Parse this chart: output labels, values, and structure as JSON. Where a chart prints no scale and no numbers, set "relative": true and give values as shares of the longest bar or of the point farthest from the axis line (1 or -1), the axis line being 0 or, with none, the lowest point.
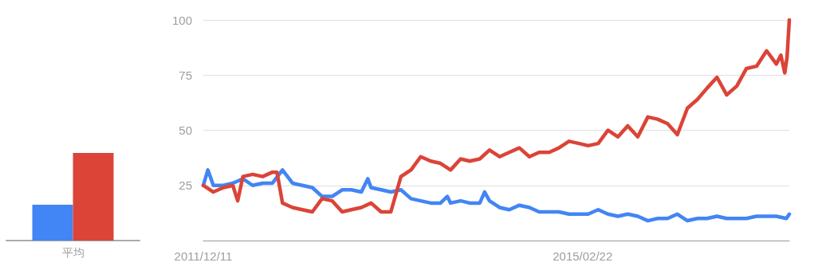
{
  "chart_data": [
    {
      "type": "bar",
      "relative": true,
      "categories": [
        "平均"
      ],
      "grid": false,
      "series": [
        {
          "color": "#4285f4",
          "values": [
            0.41
          ]
        },
        {
          "color": "#db4437",
          "values": [
            1
          ]
        }
      ]
    },
    {
      "type": "line",
      "grid": "y",
      "marker": "none",
      "line_style": "solid",
      "xlim": [
        "2011-12-11",
        "2016-11-20"
      ],
      "xticks": [
        {
          "value": "2011-12-11",
          "label": "2011/12/11"
        },
        {
          "value": "2015-02-22",
          "label": "2015/02/22"
        }
      ],
      "ylim": [
        0,
        100
      ],
      "yticks": [
        25,
        50,
        75,
        100
      ],
      "series": [
        {
          "color": "#4285f4",
          "x": [
            "2011-12-11",
            "2011-12-25",
            "2012-01-11",
            "2012-02-11",
            "2012-03-11",
            "2012-04-11",
            "2012-05-11",
            "2012-06-11",
            "2012-07-11",
            "2012-08-11",
            "2012-09-11",
            "2012-10-11",
            "2012-11-11",
            "2012-12-11",
            "2013-01-11",
            "2013-02-11",
            "2013-03-11",
            "2013-04-11",
            "2013-05-01",
            "2013-05-11",
            "2013-06-11",
            "2013-07-11",
            "2013-08-11",
            "2013-09-11",
            "2013-10-11",
            "2013-11-11",
            "2013-12-11",
            "2014-01-01",
            "2014-01-11",
            "2014-02-11",
            "2014-03-11",
            "2014-04-11",
            "2014-04-26",
            "2014-05-11",
            "2014-06-11",
            "2014-07-11",
            "2014-08-11",
            "2014-09-11",
            "2014-10-11",
            "2014-11-11",
            "2014-12-11",
            "2015-01-11",
            "2015-02-11",
            "2015-03-11",
            "2015-04-11",
            "2015-05-11",
            "2015-06-11",
            "2015-07-11",
            "2015-08-11",
            "2015-09-11",
            "2015-10-11",
            "2015-11-11",
            "2015-12-11",
            "2016-01-11",
            "2016-02-11",
            "2016-03-11",
            "2016-04-11",
            "2016-05-11",
            "2016-06-11",
            "2016-07-11",
            "2016-08-11",
            "2016-09-11",
            "2016-10-11",
            "2016-11-11",
            "2016-11-20"
          ],
          "values": [
            25,
            32,
            25,
            25,
            26,
            28,
            25,
            26,
            26,
            32,
            26,
            25,
            24,
            20,
            20,
            23,
            23,
            22,
            28,
            24,
            23,
            22,
            23,
            19,
            18,
            17,
            17,
            20,
            17,
            18,
            17,
            17,
            22,
            18,
            15,
            14,
            16,
            15,
            13,
            13,
            13,
            12,
            12,
            12,
            14,
            12,
            11,
            12,
            11,
            9,
            10,
            10,
            12,
            9,
            10,
            10,
            11,
            10,
            10,
            10,
            11,
            11,
            11,
            10,
            12
          ]
        },
        {
          "color": "#db4437",
          "x": [
            "2011-12-11",
            "2012-01-11",
            "2012-02-11",
            "2012-03-11",
            "2012-03-26",
            "2012-04-11",
            "2012-05-11",
            "2012-06-11",
            "2012-07-11",
            "2012-07-25",
            "2012-08-11",
            "2012-09-11",
            "2012-10-11",
            "2012-11-11",
            "2012-12-11",
            "2013-01-11",
            "2013-02-11",
            "2013-03-11",
            "2013-04-11",
            "2013-05-11",
            "2013-06-11",
            "2013-07-11",
            "2013-08-11",
            "2013-09-11",
            "2013-10-11",
            "2013-11-11",
            "2013-12-11",
            "2014-01-11",
            "2014-02-11",
            "2014-03-11",
            "2014-04-11",
            "2014-05-11",
            "2014-06-11",
            "2014-07-11",
            "2014-08-11",
            "2014-09-11",
            "2014-10-11",
            "2014-11-11",
            "2014-12-11",
            "2015-01-11",
            "2015-02-11",
            "2015-03-11",
            "2015-04-11",
            "2015-05-11",
            "2015-06-11",
            "2015-07-11",
            "2015-08-11",
            "2015-09-11",
            "2015-10-11",
            "2015-11-11",
            "2015-12-11",
            "2016-01-11",
            "2016-02-11",
            "2016-03-11",
            "2016-04-11",
            "2016-05-11",
            "2016-06-11",
            "2016-07-11",
            "2016-08-11",
            "2016-09-11",
            "2016-10-11",
            "2016-10-25",
            "2016-11-06",
            "2016-11-13",
            "2016-11-20"
          ],
          "values": [
            25,
            22,
            24,
            25,
            18,
            29,
            30,
            29,
            31,
            31,
            17,
            15,
            14,
            13,
            19,
            18,
            13,
            14,
            15,
            17,
            13,
            13,
            29,
            32,
            38,
            36,
            35,
            32,
            37,
            36,
            37,
            41,
            38,
            40,
            42,
            38,
            40,
            40,
            42,
            45,
            44,
            43,
            44,
            50,
            47,
            52,
            47,
            56,
            55,
            53,
            48,
            60,
            64,
            69,
            74,
            66,
            70,
            78,
            79,
            86,
            80,
            84,
            76,
            83,
            100
          ]
        }
      ]
    }
  ]
}
